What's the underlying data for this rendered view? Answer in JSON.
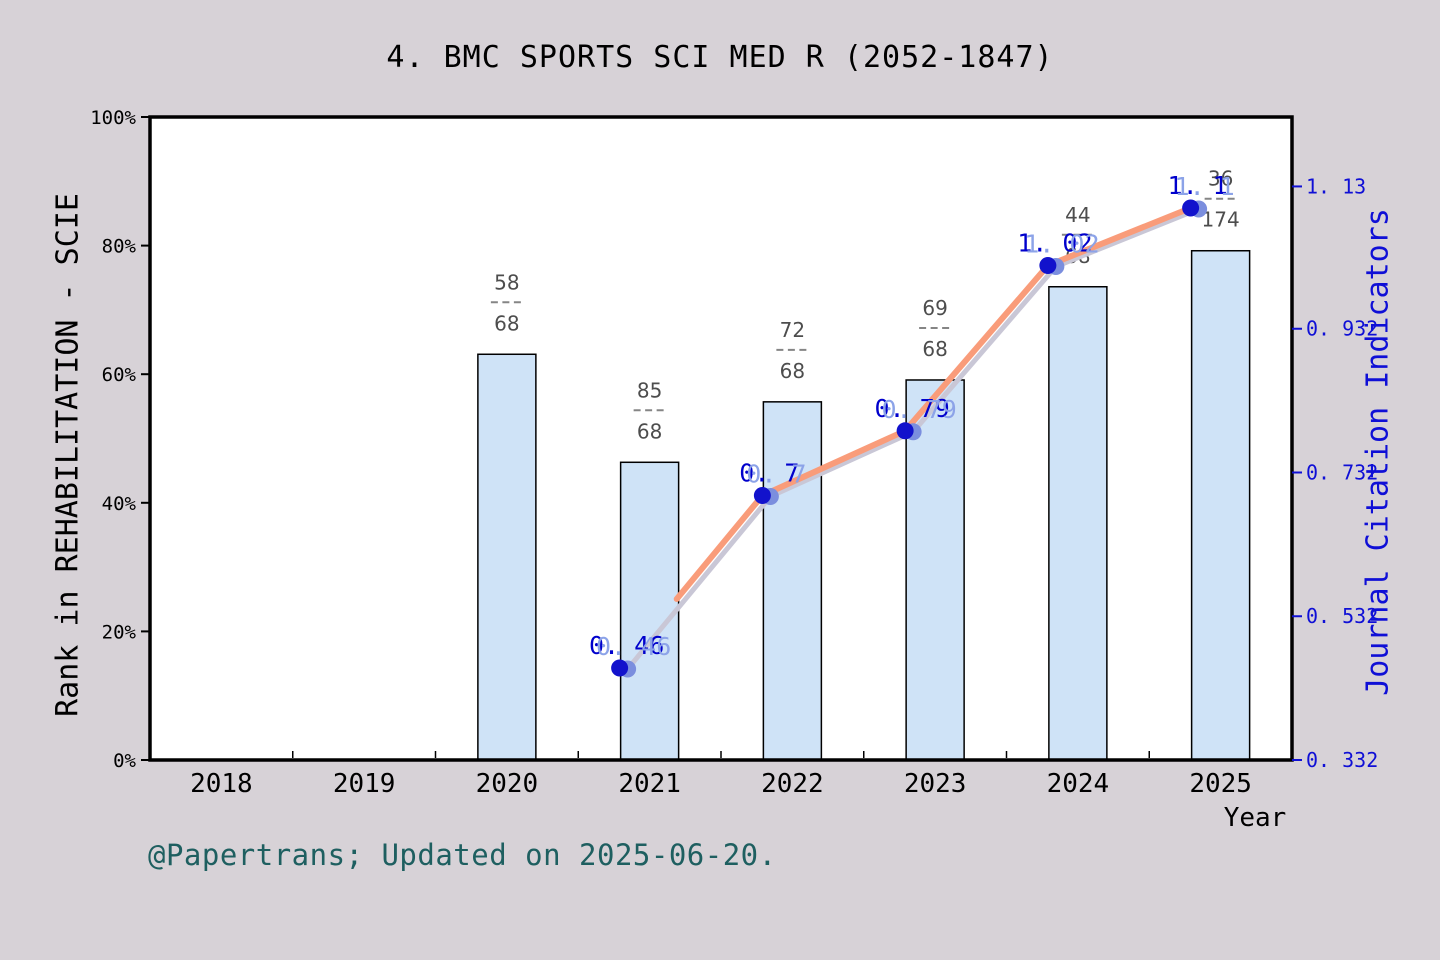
{
  "title": "4. BMC SPORTS SCI MED R (2052-1847)",
  "footer": "@Papertrans; Updated on 2025-06-20.",
  "chart_data": {
    "type": "bar+line",
    "title": "4. BMC SPORTS SCI MED R (2052-1847)",
    "x_axis": {
      "label": "Year",
      "categories": [
        "2018",
        "2019",
        "2020",
        "2021",
        "2022",
        "2023",
        "2024",
        "2025"
      ]
    },
    "left_axis": {
      "label": "Rank in REHABILITATION - SCIE",
      "tick_values_pct": [
        0,
        20,
        40,
        60,
        80,
        100
      ],
      "tick_labels": [
        "0%",
        "20%",
        "40%",
        "60%",
        "80%",
        "100%"
      ],
      "range_pct": [
        0,
        100
      ],
      "grid": false
    },
    "right_axis": {
      "label": "Journal Citation Indicators",
      "tick_values": [
        0.332,
        0.532,
        0.732,
        0.932,
        1.13
      ],
      "tick_labels": [
        "0. 332",
        "0. 532",
        "0. 732",
        "0. 932",
        "1. 13"
      ],
      "range": [
        0.332,
        1.2266
      ]
    },
    "bars": [
      {
        "year": "2020",
        "height_pct": 63.1,
        "rank": "58",
        "total": "68"
      },
      {
        "year": "2021",
        "height_pct": 46.3,
        "rank": "85",
        "total": "68"
      },
      {
        "year": "2022",
        "height_pct": 55.7,
        "rank": "72",
        "total": "68"
      },
      {
        "year": "2023",
        "height_pct": 59.1,
        "rank": "69",
        "total": "68"
      },
      {
        "year": "2024",
        "height_pct": 73.6,
        "rank": "44",
        "total": "68"
      },
      {
        "year": "2025",
        "height_pct": 79.2,
        "rank": "36",
        "total": "174"
      }
    ],
    "line": {
      "name": "Journal Citation Indicators",
      "points": [
        {
          "year": "2021",
          "value": 0.46,
          "label": "0. 46"
        },
        {
          "year": "2022",
          "value": 0.7,
          "label": "0. 7"
        },
        {
          "year": "2023",
          "value": 0.79,
          "label": "0. 79"
        },
        {
          "year": "2024",
          "value": 1.02,
          "label": "1. 02"
        },
        {
          "year": "2025",
          "value": 1.1,
          "label": "1. 1"
        }
      ]
    },
    "colors": {
      "background": "#d7d2d7",
      "plot_background": "#ffffff",
      "bar_fill": "#cfe3f7",
      "bar_edge": "#000000",
      "fraction_text": "#4d4d4d",
      "fraction_dash": "#858585",
      "line_orange": "#f99c7a",
      "line_gray": "#c9c7d6",
      "dot_navy": "#1212cc",
      "dot_light": "#7b8ede",
      "value_label_dark": "#0000cc",
      "value_label_light": "#8ca3e8",
      "right_axis_blue": "#0f0fd6",
      "spine": "#000000",
      "footer_teal": "#1e5f60"
    }
  }
}
